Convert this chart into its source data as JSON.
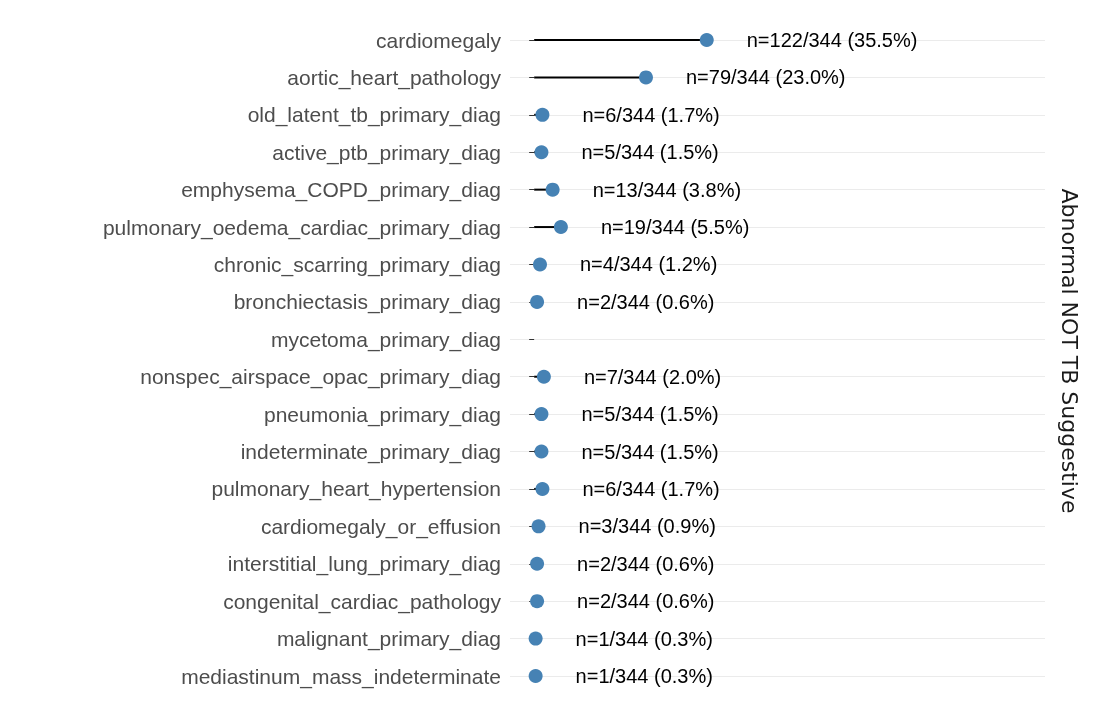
{
  "chart_data": {
    "type": "lollipop",
    "orientation": "horizontal",
    "categories": [
      "cardiomegaly",
      "aortic_heart_pathology",
      "old_latent_tb_primary_diag",
      "active_ptb_primary_diag",
      "emphysema_COPD_primary_diag",
      "pulmonary_oedema_cardiac_primary_diag",
      "chronic_scarring_primary_diag",
      "bronchiectasis_primary_diag",
      "mycetoma_primary_diag",
      "nonspec_airspace_opac_primary_diag",
      "pneumonia_primary_diag",
      "indeterminate_primary_diag",
      "pulmonary_heart_hypertension",
      "cardiomegaly_or_effusion",
      "interstitial_lung_primary_diag",
      "congenital_cardiac_pathology",
      "malignant_primary_diag",
      "mediastinum_mass_indeterminate"
    ],
    "values": [
      35.5,
      23.0,
      1.7,
      1.5,
      3.8,
      5.5,
      1.2,
      0.6,
      null,
      2.0,
      1.5,
      1.5,
      1.7,
      0.9,
      0.6,
      0.6,
      0.3,
      0.3
    ],
    "value_labels": [
      "n=122/344 (35.5%)",
      "n=79/344 (23.0%)",
      "n=6/344 (1.7%)",
      "n=5/344 (1.5%)",
      "n=13/344 (3.8%)",
      "n=19/344 (5.5%)",
      "n=4/344 (1.2%)",
      "n=2/344 (0.6%)",
      null,
      "n=7/344 (2.0%)",
      "n=5/344 (1.5%)",
      "n=5/344 (1.5%)",
      "n=6/344 (1.7%)",
      "n=3/344 (0.9%)",
      "n=2/344 (0.6%)",
      "n=2/344 (0.6%)",
      "n=1/344 (0.3%)",
      "n=1/344 (0.3%)"
    ],
    "color": "#4682b4",
    "tick_labels": "y",
    "grid": "y",
    "marker": "circle",
    "annotations": [
      "Abnormal NOT TB Suggestive"
    ]
  }
}
